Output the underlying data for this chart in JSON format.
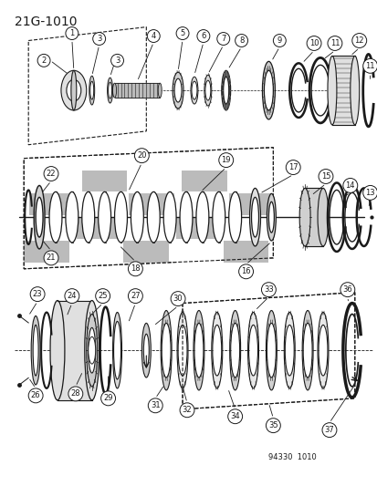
{
  "title": "21G-1010",
  "bg_color": "#ffffff",
  "line_color": "#1a1a1a",
  "footnote": "94330  1010",
  "fig_width": 4.14,
  "fig_height": 5.33,
  "dpi": 100
}
